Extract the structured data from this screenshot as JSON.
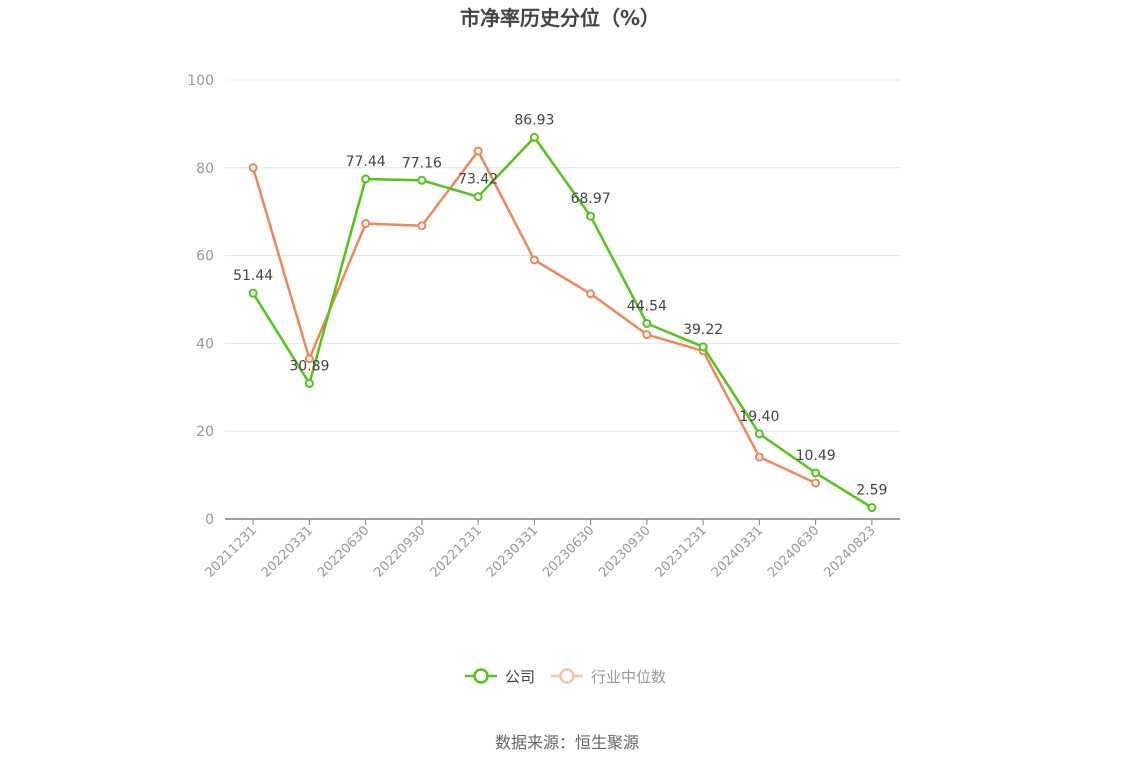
{
  "chart_data": {
    "type": "line",
    "title": "市净率历史分位（%）",
    "categories": [
      "20211231",
      "20220331",
      "20220630",
      "20220930",
      "20221231",
      "20230331",
      "20230630",
      "20230930",
      "20231231",
      "20240331",
      "20240630",
      "20240823"
    ],
    "y_ticks": [
      "0",
      "20",
      "40",
      "60",
      "80",
      "100"
    ],
    "ylim": [
      0,
      100
    ],
    "grid": true,
    "legend_position": "bottom-center",
    "series": [
      {
        "name": "公司",
        "color": "#52c41a",
        "values": [
          51.44,
          30.89,
          77.44,
          77.16,
          73.42,
          86.93,
          68.97,
          44.54,
          39.22,
          19.4,
          10.49,
          2.59
        ],
        "labels": [
          "51.44",
          "30.89",
          "77.44",
          "77.16",
          "73.42",
          "86.93",
          "68.97",
          "44.54",
          "39.22",
          "19.40",
          "10.49",
          "2.59"
        ]
      },
      {
        "name": "行业中位数",
        "color": "#f0875a",
        "values": [
          80.0,
          36.5,
          67.3,
          66.8,
          83.8,
          59.0,
          51.3,
          42.0,
          38.3,
          14.1,
          8.2,
          null
        ]
      }
    ],
    "source": "数据来源：恒生聚源"
  }
}
